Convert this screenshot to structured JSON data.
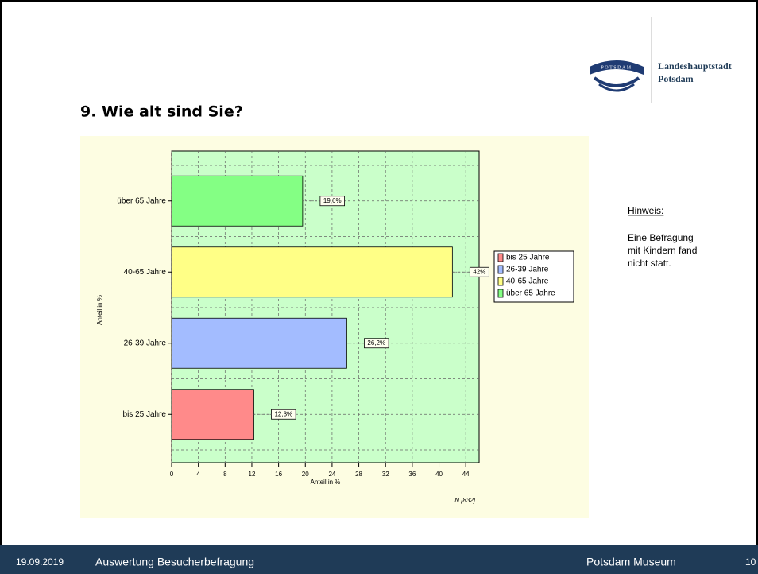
{
  "header": {
    "logo_text": "POTSDAM",
    "org_line1": "Landeshauptstadt",
    "org_line2": "Potsdam"
  },
  "chart_data": {
    "type": "hbar",
    "title": "9. Wie alt sind Sie?",
    "categories": [
      "bis 25 Jahre",
      "26-39 Jahre",
      "40-65 Jahre",
      "über 65 Jahre"
    ],
    "values": [
      12.3,
      26.2,
      42,
      19.6
    ],
    "value_labels": [
      "12,3%",
      "26,2%",
      "42%",
      "19,6%"
    ],
    "colors": [
      "#ff8a8a",
      "#a3bcff",
      "#ffff86",
      "#84ff84"
    ],
    "xlim": [
      0,
      46
    ],
    "xticks": [
      0,
      4,
      8,
      12,
      16,
      20,
      24,
      28,
      32,
      36,
      40,
      44
    ],
    "x_label": "Anteil in %",
    "y_label": "Anteil in %",
    "note": "N [832]",
    "grid": true,
    "legend": "right"
  },
  "hint": {
    "title": "Hinweis:",
    "lines": [
      "Eine Befragung",
      "mit Kindern fand",
      "nicht statt."
    ]
  },
  "footer": {
    "date": "19.09.2019",
    "title": "Auswertung Besucherbefragung",
    "org": "Potsdam Museum",
    "page": "10"
  }
}
